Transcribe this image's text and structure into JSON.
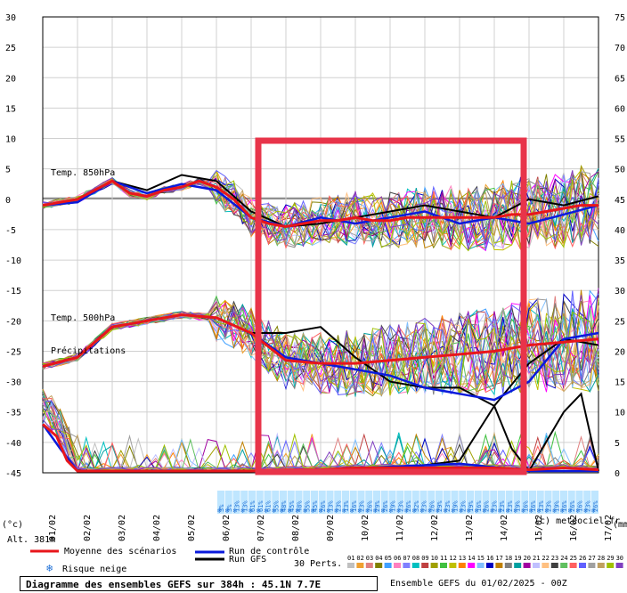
{
  "chart_data": {
    "type": "line",
    "left_axis": {
      "ticks": [
        30,
        25,
        20,
        15,
        10,
        5,
        0,
        -5,
        -10,
        -15,
        -20,
        -25,
        -30,
        -35,
        -40,
        -45
      ],
      "unit": "(°c)"
    },
    "right_axis": {
      "ticks": [
        75,
        70,
        65,
        60,
        55,
        50,
        45,
        40,
        35,
        30,
        25,
        20,
        15,
        10,
        5,
        0
      ],
      "unit": "(mm)"
    },
    "x_ticks": [
      "01/02",
      "02/02",
      "03/02",
      "04/02",
      "05/02",
      "06/02",
      "07/02",
      "08/02",
      "09/02",
      "10/02",
      "11/02",
      "12/02",
      "13/02",
      "14/02",
      "15/02",
      "16/02",
      "17/02"
    ],
    "grid": true,
    "panel_labels": [
      "Temp. 850hPa",
      "Temp. 500hPa",
      "Précipitations"
    ],
    "snow_risk": [
      "3%",
      "3%",
      "13%",
      "13%",
      "61%",
      "61%",
      "61%",
      "55%",
      "48%",
      "45%",
      "48%",
      "55%",
      "45%",
      "26%",
      "13%",
      "23%",
      "13%",
      "16%",
      "23%",
      "26%",
      "29%",
      "26%",
      "19%",
      "23%",
      "26%",
      "32%",
      "23%",
      "26%",
      "29%",
      "23%",
      "19%",
      "23%",
      "19%",
      "16%",
      "26%",
      "23%",
      "23%",
      "23%",
      "19%",
      "16%",
      "16%",
      "13%",
      "23%",
      "19%",
      "16%",
      "26%",
      "16%",
      "23%",
      "26%"
    ],
    "series": [
      {
        "name": "Moyenne des scénarios",
        "t850": [
          [
            0,
            -1
          ],
          [
            0.5,
            -0.5
          ],
          [
            1,
            0
          ],
          [
            1.5,
            1.5
          ],
          [
            2,
            3
          ],
          [
            2.5,
            1
          ],
          [
            3,
            0.5
          ],
          [
            3.5,
            1.5
          ],
          [
            4,
            2
          ],
          [
            4.5,
            3
          ],
          [
            5,
            2
          ],
          [
            5.5,
            0
          ],
          [
            6,
            -3
          ],
          [
            6.5,
            -4
          ],
          [
            7,
            -4.5
          ],
          [
            7.5,
            -4
          ],
          [
            8,
            -3.5
          ],
          [
            8.5,
            -3.5
          ],
          [
            9,
            -3
          ],
          [
            9.5,
            -3.5
          ],
          [
            10,
            -3.5
          ],
          [
            10.5,
            -3
          ],
          [
            11,
            -3
          ],
          [
            11.5,
            -3
          ],
          [
            12,
            -3
          ],
          [
            12.5,
            -3
          ],
          [
            13,
            -3
          ],
          [
            13.5,
            -2.5
          ],
          [
            14,
            -2.5
          ],
          [
            14.5,
            -2
          ],
          [
            15,
            -1.5
          ],
          [
            15.5,
            -1
          ],
          [
            16,
            -1
          ]
        ],
        "t500": [
          [
            0,
            -27.5
          ],
          [
            1,
            -26
          ],
          [
            2,
            -21
          ],
          [
            3,
            -20
          ],
          [
            4,
            -19
          ],
          [
            5,
            -19.5
          ],
          [
            6,
            -22
          ],
          [
            7,
            -26.5
          ],
          [
            8,
            -27
          ],
          [
            9,
            -27
          ],
          [
            10,
            -26.5
          ],
          [
            11,
            -26
          ],
          [
            12,
            -25.5
          ],
          [
            13,
            -25
          ],
          [
            14,
            -24
          ],
          [
            15,
            -23.5
          ],
          [
            16,
            -23
          ]
        ],
        "precip": [
          [
            0,
            8
          ],
          [
            0.4,
            6
          ],
          [
            0.7,
            2
          ],
          [
            1,
            0.3
          ],
          [
            2,
            0.3
          ],
          [
            4,
            0.3
          ],
          [
            6,
            0.3
          ],
          [
            7,
            0.5
          ],
          [
            8,
            0.5
          ],
          [
            9,
            0.8
          ],
          [
            10,
            0.8
          ],
          [
            11,
            0.8
          ],
          [
            12,
            0.8
          ],
          [
            13,
            0.8
          ],
          [
            14,
            0.5
          ],
          [
            15,
            0.8
          ],
          [
            16,
            0.5
          ]
        ]
      },
      {
        "name": "Run de contrôle",
        "t850": [
          [
            0,
            -1
          ],
          [
            1,
            -0.5
          ],
          [
            2,
            3
          ],
          [
            3,
            1
          ],
          [
            4,
            2.5
          ],
          [
            5,
            1.5
          ],
          [
            6,
            -3
          ],
          [
            7,
            -4.5
          ],
          [
            8,
            -3
          ],
          [
            9,
            -4
          ],
          [
            10,
            -3
          ],
          [
            11,
            -2
          ],
          [
            12,
            -4
          ],
          [
            13,
            -3
          ],
          [
            14,
            -4
          ],
          [
            15,
            -2.5
          ],
          [
            16,
            -1
          ]
        ],
        "t500": [
          [
            0,
            -27.5
          ],
          [
            1,
            -26
          ],
          [
            2,
            -21
          ],
          [
            3,
            -20
          ],
          [
            4,
            -19
          ],
          [
            5,
            -19.5
          ],
          [
            6,
            -22
          ],
          [
            7,
            -26
          ],
          [
            8,
            -27
          ],
          [
            9,
            -28
          ],
          [
            10,
            -29
          ],
          [
            11,
            -31
          ],
          [
            12,
            -32
          ],
          [
            13,
            -33
          ],
          [
            14,
            -30
          ],
          [
            15,
            -23
          ],
          [
            16,
            -22
          ]
        ],
        "precip": [
          [
            0,
            8
          ],
          [
            0.5,
            4
          ],
          [
            1,
            0.3
          ],
          [
            6,
            0.3
          ],
          [
            8,
            0.5
          ],
          [
            10,
            1
          ],
          [
            12,
            1.5
          ],
          [
            14,
            0.3
          ],
          [
            16,
            0.3
          ]
        ]
      },
      {
        "name": "Run GFS",
        "t850": [
          [
            0,
            -1
          ],
          [
            1,
            -0.5
          ],
          [
            2,
            3
          ],
          [
            3,
            1.5
          ],
          [
            4,
            4
          ],
          [
            5,
            3
          ],
          [
            6,
            -2
          ],
          [
            7,
            -4.5
          ],
          [
            8,
            -4
          ],
          [
            9,
            -3
          ],
          [
            10,
            -2
          ],
          [
            11,
            -1
          ],
          [
            12,
            -2
          ],
          [
            13,
            -3
          ],
          [
            14,
            0
          ],
          [
            15,
            -1
          ],
          [
            16,
            0.5
          ]
        ],
        "t500": [
          [
            0,
            -27.5
          ],
          [
            1,
            -26
          ],
          [
            2,
            -21
          ],
          [
            3,
            -20
          ],
          [
            4,
            -19
          ],
          [
            5,
            -19.5
          ],
          [
            6,
            -22
          ],
          [
            7,
            -22
          ],
          [
            8,
            -21
          ],
          [
            9,
            -26
          ],
          [
            10,
            -30
          ],
          [
            11,
            -31
          ],
          [
            12,
            -31
          ],
          [
            13,
            -34
          ],
          [
            14,
            -27
          ],
          [
            15,
            -23
          ],
          [
            16,
            -24
          ]
        ],
        "precip": [
          [
            0,
            8
          ],
          [
            0.5,
            4
          ],
          [
            1,
            0.3
          ],
          [
            7,
            0.3
          ],
          [
            10,
            0.5
          ],
          [
            12,
            2
          ],
          [
            13,
            11
          ],
          [
            13.5,
            4
          ],
          [
            14,
            0.3
          ],
          [
            15,
            10
          ],
          [
            15.5,
            13
          ],
          [
            16,
            0.3
          ]
        ]
      }
    ],
    "highlight_range": [
      "07/02",
      "15/02"
    ]
  },
  "legend": {
    "mean": "Moyenne des scénarios",
    "control": "Run de contrôle",
    "gfs": "Run GFS",
    "snow": "Risque neige",
    "perts": "30 Perts.",
    "pert_numbers": [
      "01",
      "02",
      "03",
      "04",
      "05",
      "06",
      "07",
      "08",
      "09",
      "10",
      "11",
      "12",
      "13",
      "14",
      "15",
      "16",
      "17",
      "18",
      "19",
      "20",
      "21",
      "22",
      "23",
      "24",
      "25",
      "26",
      "27",
      "28",
      "29",
      "30"
    ],
    "pert_colors": [
      "#c0c0c0",
      "#f0a030",
      "#e08080",
      "#808000",
      "#40a0ff",
      "#ff80c0",
      "#8080ff",
      "#00c0c0",
      "#c04040",
      "#a0a000",
      "#40c040",
      "#c0c000",
      "#ff8000",
      "#ff00ff",
      "#80c0ff",
      "#0000c0",
      "#c08000",
      "#808080",
      "#00a0a0",
      "#a000a0",
      "#c0c0ff",
      "#ffc080",
      "#404040",
      "#60c060",
      "#ff6060",
      "#6060ff",
      "#a0a0a0",
      "#c0a060",
      "#a0c000",
      "#8040c0"
    ]
  },
  "colors": {
    "mean": "#e8161b",
    "control": "#0a1adc",
    "gfs": "#000000",
    "highlight": "#e8344a",
    "snow": "#1d6fd6"
  },
  "alt_label": "Alt. 381m",
  "footer_left": "Diagramme des ensembles GEFS sur 384h : 45.1N 7.7E",
  "footer_right": "Ensemble GEFS du 01/02/2025 - 00Z",
  "copyright": "(c) meteociel.fr"
}
